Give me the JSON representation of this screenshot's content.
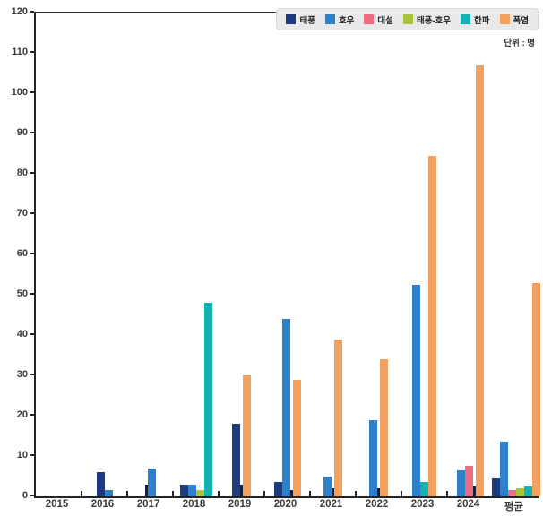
{
  "unit_label": "단위 : 명",
  "legend": {
    "position": "top-right"
  },
  "chart_data": {
    "type": "bar",
    "title": "",
    "xlabel": "",
    "ylabel": "",
    "unit": "단위 : 명",
    "ylim": [
      0,
      120
    ],
    "ytick_step": 10,
    "grid": false,
    "legend_position": "top-right",
    "categories": [
      "2015",
      "2016",
      "2017",
      "2018",
      "2019",
      "2020",
      "2021",
      "2022",
      "2023",
      "2024",
      "평균"
    ],
    "series": [
      {
        "name": "태풍",
        "color": "#1e3b7e",
        "values": [
          0,
          6,
          3,
          3,
          18,
          3.5,
          0,
          0,
          0,
          0,
          4.5
        ]
      },
      {
        "name": "호우",
        "color": "#2c80cd",
        "values": [
          0,
          1.5,
          7,
          3,
          3,
          44,
          5,
          19,
          52.5,
          6.5,
          13.5
        ]
      },
      {
        "name": "대설",
        "color": "#ee6d80",
        "values": [
          0,
          0,
          0,
          0,
          0,
          0,
          0,
          0,
          0,
          7.5,
          1.5
        ]
      },
      {
        "name": "태풍-호우",
        "color": "#a9c63a",
        "values": [
          0,
          0,
          0,
          1.5,
          0,
          0,
          0,
          0,
          0,
          0,
          2
        ]
      },
      {
        "name": "한파",
        "color": "#14b3b0",
        "values": [
          0,
          0,
          0,
          48,
          0,
          1.5,
          2,
          2,
          3.5,
          2.5,
          2.5
        ]
      },
      {
        "name": "폭염",
        "color": "#f4a15f",
        "values": [
          0,
          0,
          0,
          0,
          30,
          29,
          39,
          34,
          84.5,
          107,
          53
        ]
      }
    ],
    "thin_dark_bars": [
      [
        2,
        0
      ],
      [
        4,
        1
      ],
      [
        5,
        4
      ],
      [
        6,
        4
      ],
      [
        7,
        4
      ],
      [
        9,
        4
      ]
    ],
    "thin_dark_color": "#141f3c",
    "axis_color": "#232323"
  }
}
